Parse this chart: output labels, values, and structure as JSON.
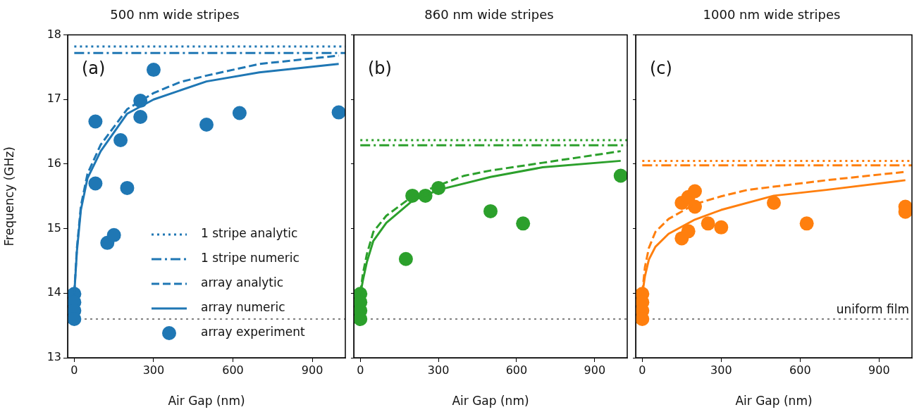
{
  "chart_data": [
    {
      "type": "line",
      "title": "500 nm wide stripes",
      "xlabel": "Air Gap (nm)",
      "ylabel": "Frequency (GHz)",
      "xlim": [
        -25,
        1025
      ],
      "xticks": [
        0,
        300,
        600,
        900
      ],
      "ylim": [
        13,
        18
      ],
      "yticks": [
        13,
        14,
        15,
        16,
        17,
        18
      ],
      "grid": false,
      "legend": "bottom right",
      "annotations": [
        "(a)"
      ],
      "ref_lines": [
        {
          "axis": "y",
          "value": 13.6,
          "color": "#808080",
          "line_style": "dotted"
        }
      ],
      "series": [
        {
          "name": "1 stripe analytic",
          "type": "line",
          "line_style": "dotted",
          "marker": "none",
          "color": "#1f77b4",
          "x": [
            0,
            1025
          ],
          "values": [
            17.82,
            17.82
          ]
        },
        {
          "name": "1 stripe numeric",
          "type": "line",
          "line_style": "dashdot",
          "marker": "none",
          "color": "#1f77b4",
          "x": [
            0,
            1025
          ],
          "values": [
            17.72,
            17.72
          ]
        },
        {
          "name": "array analytic",
          "type": "line",
          "line_style": "dashed",
          "marker": "none",
          "color": "#1f77b4",
          "x": [
            0,
            10,
            25,
            50,
            100,
            200,
            300,
            400,
            500,
            700,
            1000
          ],
          "values": [
            14.0,
            14.7,
            15.35,
            15.85,
            16.3,
            16.85,
            17.1,
            17.27,
            17.37,
            17.55,
            17.68
          ]
        },
        {
          "name": "array numeric",
          "type": "line",
          "line_style": "solid",
          "marker": "none",
          "color": "#1f77b4",
          "x": [
            0,
            10,
            25,
            50,
            100,
            200,
            300,
            500,
            700,
            1000
          ],
          "values": [
            13.98,
            14.65,
            15.29,
            15.78,
            16.2,
            16.78,
            17.0,
            17.28,
            17.42,
            17.55
          ]
        },
        {
          "name": "array experiment",
          "type": "scatter",
          "marker": "circle",
          "color": "#1f77b4",
          "x": [
            0,
            0,
            0,
            0,
            80,
            80,
            125,
            150,
            175,
            200,
            250,
            250,
            300,
            500,
            625,
            1000
          ],
          "values": [
            13.99,
            13.86,
            13.73,
            13.6,
            16.66,
            15.7,
            14.78,
            14.9,
            16.37,
            15.63,
            16.98,
            16.73,
            17.46,
            16.61,
            16.79,
            16.8
          ]
        }
      ]
    },
    {
      "type": "line",
      "title": "860 nm wide stripes",
      "xlabel": "Air Gap (nm)",
      "xlim": [
        -25,
        1025
      ],
      "xticks": [
        0,
        300,
        600,
        900
      ],
      "ylim": [
        13,
        18
      ],
      "yticks": [
        13,
        14,
        15,
        16,
        17,
        18
      ],
      "tick_labels": "x",
      "grid": false,
      "annotations": [
        "(b)"
      ],
      "ref_lines": [
        {
          "axis": "y",
          "value": 13.6,
          "color": "#808080",
          "line_style": "dotted"
        }
      ],
      "series": [
        {
          "type": "line",
          "line_style": "dotted",
          "marker": "none",
          "color": "#2ca02c",
          "x": [
            0,
            1025
          ],
          "values": [
            16.37,
            16.37
          ]
        },
        {
          "type": "line",
          "line_style": "dashdot",
          "marker": "none",
          "color": "#2ca02c",
          "x": [
            0,
            1025
          ],
          "values": [
            16.29,
            16.29
          ]
        },
        {
          "type": "line",
          "line_style": "dashed",
          "marker": "none",
          "color": "#2ca02c",
          "x": [
            0,
            10,
            25,
            50,
            100,
            200,
            300,
            400,
            500,
            700,
            1000
          ],
          "values": [
            14.0,
            14.3,
            14.6,
            14.95,
            15.2,
            15.5,
            15.67,
            15.82,
            15.9,
            16.02,
            16.2
          ]
        },
        {
          "type": "line",
          "line_style": "solid",
          "marker": "none",
          "color": "#2ca02c",
          "x": [
            0,
            10,
            25,
            50,
            100,
            200,
            300,
            500,
            700,
            1000
          ],
          "values": [
            13.98,
            14.2,
            14.48,
            14.81,
            15.09,
            15.43,
            15.6,
            15.8,
            15.95,
            16.05
          ]
        },
        {
          "type": "scatter",
          "marker": "circle",
          "color": "#2ca02c",
          "x": [
            0,
            0,
            0,
            0,
            175,
            200,
            250,
            300,
            500,
            625,
            1000
          ],
          "values": [
            13.99,
            13.86,
            13.73,
            13.6,
            14.53,
            15.51,
            15.51,
            15.63,
            15.27,
            15.08,
            15.82
          ]
        }
      ]
    },
    {
      "type": "line",
      "title": "1000 nm wide stripes",
      "xlabel": "Air Gap (nm)",
      "xlim": [
        -25,
        1025
      ],
      "xticks": [
        0,
        300,
        600,
        900
      ],
      "ylim": [
        13,
        18
      ],
      "yticks": [
        13,
        14,
        15,
        16,
        17,
        18
      ],
      "tick_labels": "x",
      "grid": false,
      "annotations": [
        "(c)"
      ],
      "ref_lines": [
        {
          "axis": "y",
          "value": 13.6,
          "label": "uniform film",
          "color": "#808080",
          "line_style": "dotted"
        }
      ],
      "series": [
        {
          "type": "line",
          "line_style": "dotted",
          "marker": "none",
          "color": "#ff7f0e",
          "x": [
            0,
            1025
          ],
          "values": [
            16.05,
            16.05
          ]
        },
        {
          "type": "line",
          "line_style": "dashdot",
          "marker": "none",
          "color": "#ff7f0e",
          "x": [
            0,
            1025
          ],
          "values": [
            15.98,
            15.98
          ]
        },
        {
          "type": "line",
          "line_style": "dashed",
          "marker": "none",
          "color": "#ff7f0e",
          "x": [
            0,
            10,
            25,
            50,
            100,
            200,
            300,
            400,
            500,
            700,
            1000
          ],
          "values": [
            14.0,
            14.4,
            14.7,
            14.95,
            15.15,
            15.38,
            15.5,
            15.6,
            15.65,
            15.75,
            15.88
          ]
        },
        {
          "type": "line",
          "line_style": "solid",
          "marker": "none",
          "color": "#ff7f0e",
          "x": [
            0,
            10,
            25,
            50,
            100,
            200,
            300,
            500,
            700,
            1000
          ],
          "values": [
            13.98,
            14.26,
            14.52,
            14.72,
            14.92,
            15.14,
            15.29,
            15.51,
            15.6,
            15.75
          ]
        },
        {
          "type": "scatter",
          "marker": "circle",
          "color": "#ff7f0e",
          "x": [
            0,
            0,
            0,
            0,
            150,
            175,
            200,
            200,
            150,
            175,
            250,
            300,
            500,
            625,
            1000,
            1000
          ],
          "values": [
            13.99,
            13.86,
            13.73,
            13.6,
            15.4,
            15.49,
            15.58,
            15.34,
            14.85,
            14.96,
            15.08,
            15.02,
            15.4,
            15.08,
            15.34,
            15.26
          ]
        }
      ]
    }
  ]
}
